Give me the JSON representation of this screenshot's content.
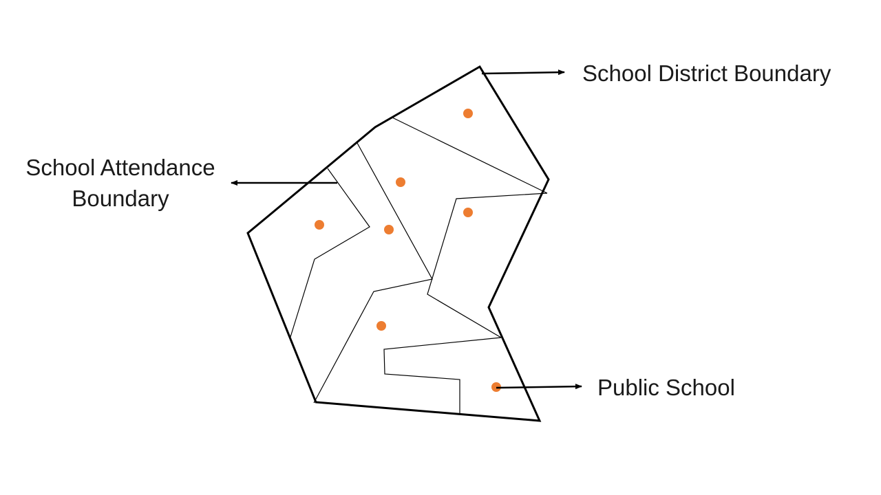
{
  "labels": {
    "district_boundary": "School District Boundary",
    "attendance_boundary_line1": "School Attendance",
    "attendance_boundary_line2": "Boundary",
    "public_school": "Public School"
  },
  "colors": {
    "school_dot": "#ed7d31",
    "boundary": "#000000",
    "background": "#ffffff"
  },
  "school_count": 7
}
